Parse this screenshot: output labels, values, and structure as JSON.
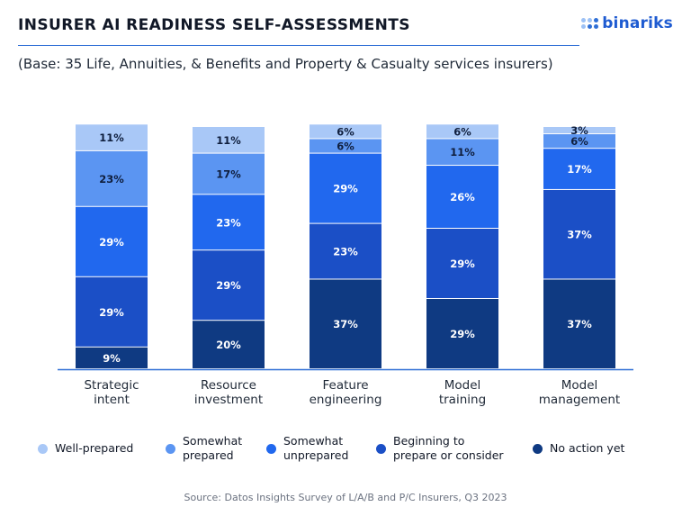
{
  "header": {
    "title": "INSURER AI READINESS SELF-ASSESSMENTS",
    "subtitle": "(Base: 35 Life, Annuities, & Benefits and Property & Casualty services insurers)",
    "logo_text": "binariks"
  },
  "source": "Source: Datos Insights Survey of L/A/B and P/C Insurers, Q3 2023",
  "chart_data": {
    "type": "bar",
    "stacked": true,
    "categories": [
      "Strategic\nintent",
      "Resource\ninvestment",
      "Feature\nengineering",
      "Model\ntraining",
      "Model\nmanagement"
    ],
    "series": [
      {
        "name": "No action yet",
        "color": "#0f3a82",
        "values": [
          9,
          20,
          37,
          29,
          37
        ],
        "labels": [
          "9%",
          "20%",
          "37%",
          "29%",
          "37%"
        ]
      },
      {
        "name": "Beginning to\nprepare or consider",
        "color": "#1b4fc6",
        "values": [
          29,
          29,
          23,
          29,
          37
        ],
        "labels": [
          "29%",
          "29%",
          "23%",
          "29%",
          "37%"
        ]
      },
      {
        "name": "Somewhat\nunprepared",
        "color": "#2168ee",
        "values": [
          29,
          23,
          29,
          26,
          17
        ],
        "labels": [
          "29%",
          "23%",
          "29%",
          "26%",
          "17%"
        ]
      },
      {
        "name": "Somewhat\nprepared",
        "color": "#5b95f2",
        "values": [
          23,
          17,
          6,
          11,
          6
        ],
        "labels": [
          "23%",
          "17%",
          "6%",
          "11%",
          "6%"
        ]
      },
      {
        "name": "Well-prepared",
        "color": "#a9c8f7",
        "values": [
          11,
          11,
          6,
          6,
          3
        ],
        "labels": [
          "11%",
          "11%",
          "6%",
          "6%",
          "3%"
        ]
      }
    ],
    "legend_order": [
      "Well-prepared",
      "Somewhat\nprepared",
      "Somewhat\nunprepared",
      "Beginning to\nprepare or consider",
      "No action yet"
    ],
    "legend_position": "bottom",
    "grid": false
  }
}
